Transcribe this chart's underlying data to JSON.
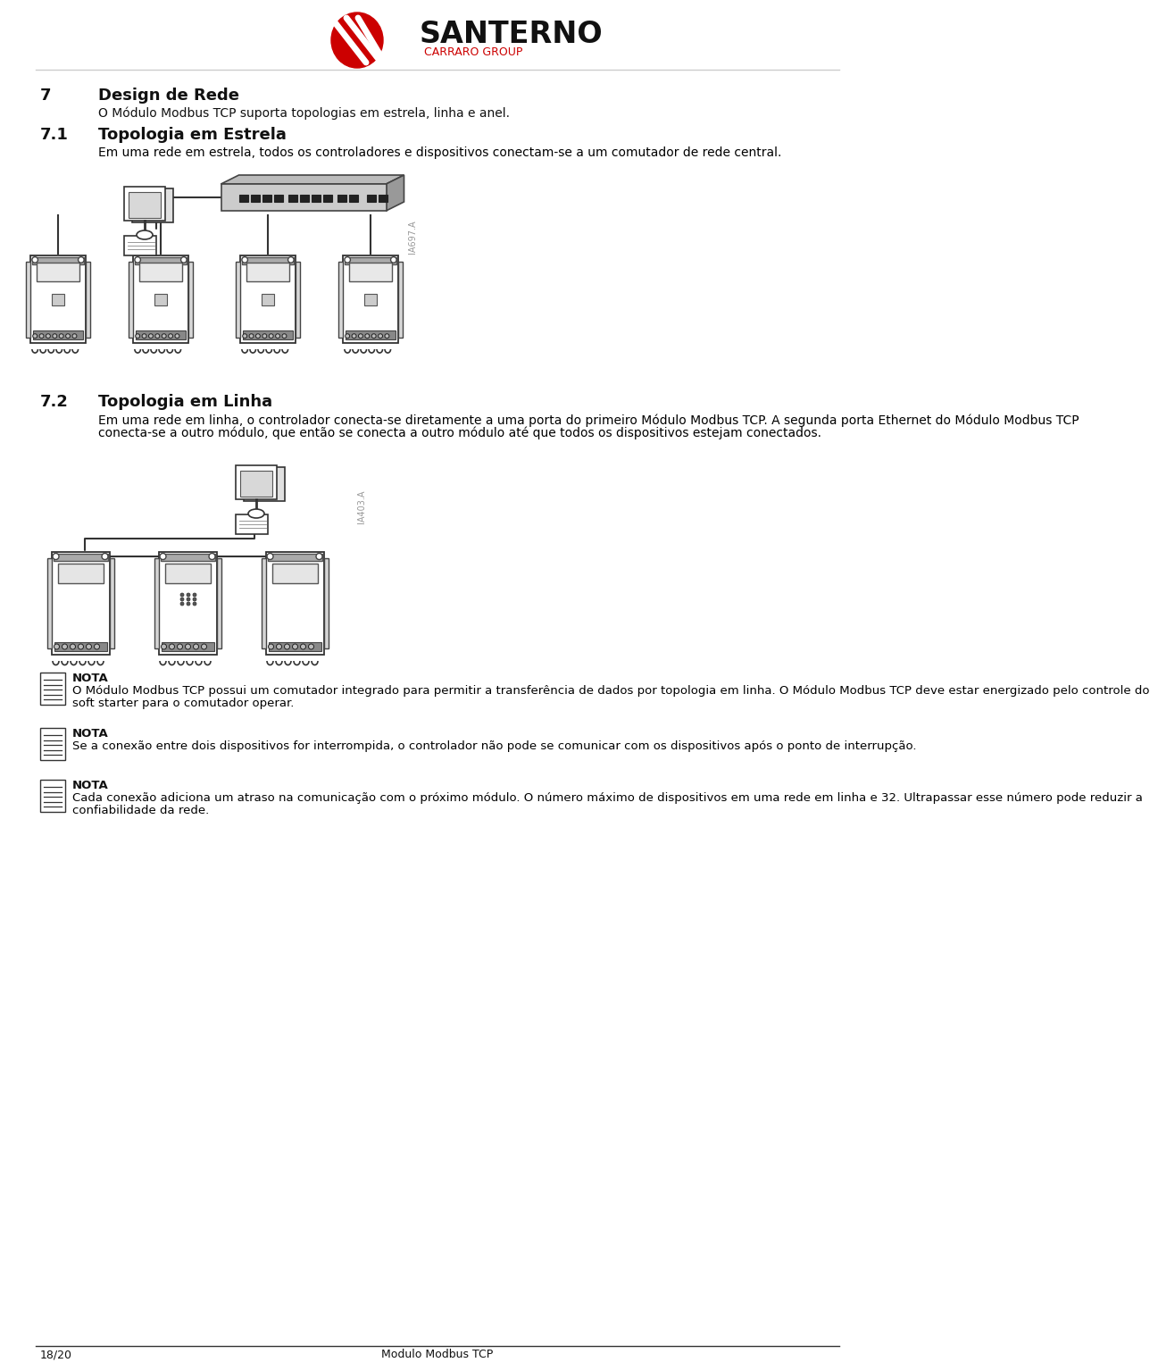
{
  "bg_color": "#ffffff",
  "title_main": "7",
  "title_main_text": "Design de Rede",
  "subtitle_main": "O Módulo Modbus TCP suporta topologias em estrela, linha e anel.",
  "section_71_num": "7.1",
  "section_71_title": "Topologia em Estrela",
  "section_71_body": "Em uma rede em estrela, todos os controladores e dispositivos conectam-se a um comutador de rede central.",
  "section_72_num": "7.2",
  "section_72_title": "Topologia em Linha",
  "section_72_body": "Em uma rede em linha, o controlador conecta-se diretamente a uma porta do primeiro Módulo Modbus TCP. A segunda porta Ethernet do Módulo Modbus TCP conecta-se a outro módulo, que então se conecta a outro módulo até que todos os dispositivos estejam conectados.",
  "nota1_title": "NOTA",
  "nota1_body": "O Módulo Modbus TCP possui um comutador integrado para permitir a transferência de dados por topologia em linha.   O Módulo Modbus TCP deve estar energizado pelo controle do soft starter para o comutador operar.",
  "nota2_title": "NOTA",
  "nota2_body": "Se a conexão entre dois dispositivos for interrompida, o controlador não pode se comunicar com os dispositivos após o ponto de interrupção.",
  "nota3_title": "NOTA",
  "nota3_body1": "Cada conexão adiciona um atraso na comunicação com o próximo módulo.",
  "nota3_body2": "O número máximo de dispositivos em uma rede em linha e 32.   Ultrapassar esse número pode reduzir a confiabilidade da rede.",
  "footer_left": "18/20",
  "footer_center": "Modulo Modbus TCP",
  "header_brand": "SANTERNO",
  "header_sub": "CARRARO GROUP",
  "red_color": "#cc0000",
  "black_color": "#000000",
  "gray_color": "#888888",
  "light_gray": "#cccccc",
  "med_gray": "#aaaaaa",
  "dark_gray": "#555555"
}
